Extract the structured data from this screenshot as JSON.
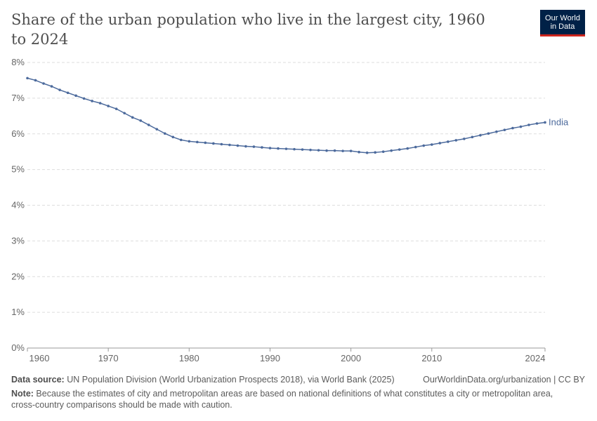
{
  "header": {
    "title": "Share of the urban population who live in the largest city, 1960 to 2024",
    "logo": "Our World in Data",
    "logo_line1": "Our World",
    "logo_line2": "in Data"
  },
  "chart_data": {
    "type": "line",
    "title": "Share of the urban population who live in the largest city, 1960 to 2024",
    "xlim": [
      1960,
      2024
    ],
    "ylim": [
      0,
      8
    ],
    "x_ticks": [
      1960,
      1970,
      1980,
      1990,
      2000,
      2010,
      2024
    ],
    "y_ticks": [
      "0%",
      "1%",
      "2%",
      "3%",
      "4%",
      "5%",
      "6%",
      "7%",
      "8%"
    ],
    "grid": "horizontal dashed",
    "legend": "inline-right-end",
    "series": [
      {
        "name": "India",
        "color": "#4c6a9c",
        "x": [
          1960,
          1961,
          1962,
          1963,
          1964,
          1965,
          1966,
          1967,
          1968,
          1969,
          1970,
          1971,
          1972,
          1973,
          1974,
          1975,
          1976,
          1977,
          1978,
          1979,
          1980,
          1981,
          1982,
          1983,
          1984,
          1985,
          1986,
          1987,
          1988,
          1989,
          1990,
          1991,
          1992,
          1993,
          1994,
          1995,
          1996,
          1997,
          1998,
          1999,
          2000,
          2001,
          2002,
          2003,
          2004,
          2005,
          2006,
          2007,
          2008,
          2009,
          2010,
          2011,
          2012,
          2013,
          2014,
          2015,
          2016,
          2017,
          2018,
          2019,
          2020,
          2021,
          2022,
          2023,
          2024
        ],
        "values": [
          7.56,
          7.5,
          7.41,
          7.33,
          7.23,
          7.15,
          7.07,
          6.99,
          6.92,
          6.86,
          6.78,
          6.7,
          6.58,
          6.46,
          6.37,
          6.25,
          6.13,
          6.01,
          5.91,
          5.83,
          5.79,
          5.77,
          5.75,
          5.73,
          5.71,
          5.69,
          5.67,
          5.65,
          5.64,
          5.62,
          5.6,
          5.59,
          5.58,
          5.57,
          5.56,
          5.55,
          5.54,
          5.53,
          5.53,
          5.52,
          5.52,
          5.49,
          5.47,
          5.48,
          5.5,
          5.53,
          5.56,
          5.59,
          5.63,
          5.67,
          5.7,
          5.74,
          5.78,
          5.82,
          5.86,
          5.91,
          5.96,
          6.01,
          6.06,
          6.11,
          6.16,
          6.2,
          6.25,
          6.29,
          6.32
        ]
      }
    ]
  },
  "footer": {
    "source_label": "Data source:",
    "source": " UN Population Division (World Urbanization Prospects 2018), via World Bank (2025)",
    "url": "OurWorldinData.org/urbanization | CC BY",
    "note_label": "Note:",
    "note": " Because the estimates of city and metropolitan areas are based on national definitions of what constitutes a city or metropolitan area, cross-country comparisons should be made with caution."
  }
}
